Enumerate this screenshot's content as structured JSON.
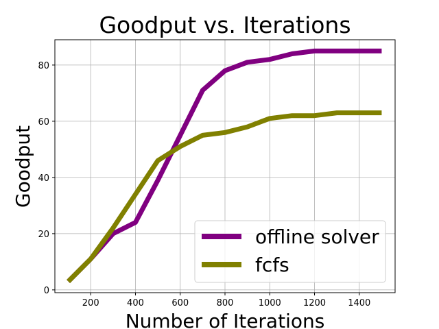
{
  "chart_data": {
    "type": "line",
    "title": "Goodput vs. Iterations",
    "xlabel": "Number of Iterations",
    "ylabel": "Goodput",
    "xlim": [
      40,
      1560
    ],
    "ylim": [
      -1,
      89
    ],
    "xticks": [
      200,
      400,
      600,
      800,
      1000,
      1200,
      1400
    ],
    "yticks": [
      0,
      20,
      40,
      60,
      80
    ],
    "grid": true,
    "legend_position": "lower-right",
    "x": [
      100,
      200,
      300,
      400,
      500,
      600,
      700,
      800,
      900,
      1000,
      1100,
      1200,
      1300,
      1400,
      1500
    ],
    "series": [
      {
        "name": "offline solver",
        "color": "#800080",
        "values": [
          3,
          11,
          20,
          24,
          39,
          55,
          71,
          78,
          81,
          82,
          84,
          85,
          85,
          85,
          85
        ]
      },
      {
        "name": "fcfs",
        "color": "#808000",
        "values": [
          3,
          11,
          22,
          34,
          46,
          51,
          55,
          56,
          58,
          61,
          62,
          62,
          63,
          63,
          63
        ]
      }
    ]
  }
}
